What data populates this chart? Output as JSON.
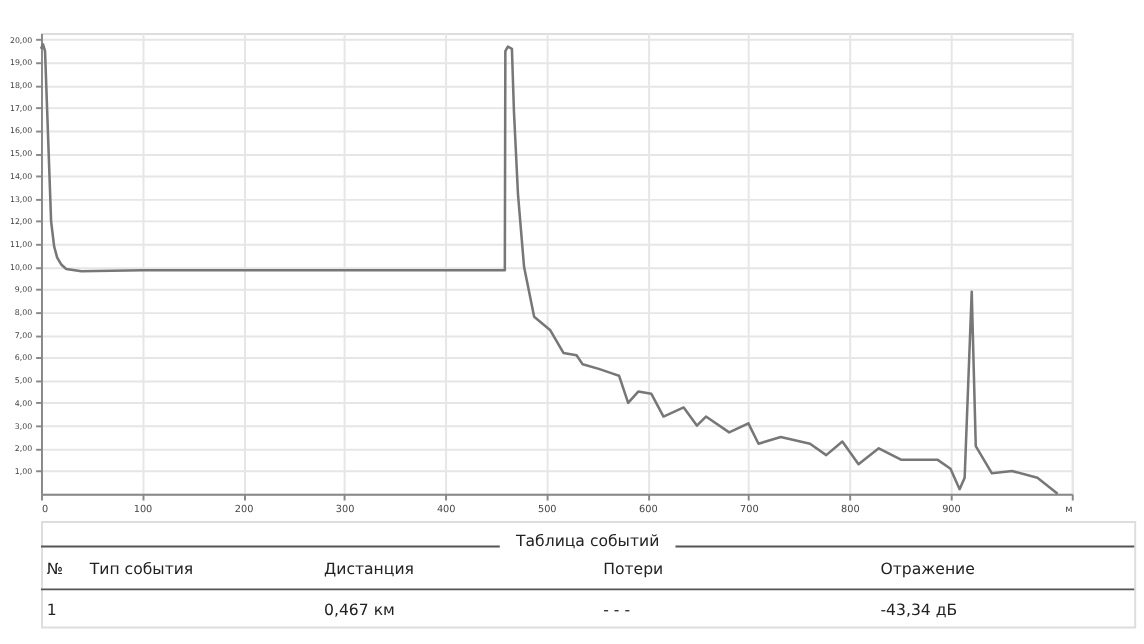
{
  "chart_data": {
    "type": "line",
    "x": [
      0,
      2,
      4,
      6,
      8,
      10,
      13,
      16,
      20,
      25,
      40,
      100,
      200,
      300,
      400,
      459,
      459.5,
      462,
      466,
      468,
      472,
      478,
      488,
      504,
      517,
      530,
      536,
      552,
      565,
      572,
      581,
      591,
      604,
      616,
      636,
      649,
      658,
      681,
      700,
      710,
      732,
      761,
      777,
      793,
      809,
      829,
      851,
      887,
      900,
      909,
      914,
      921,
      925,
      941,
      961,
      986,
      1006
    ],
    "series": [
      {
        "color": "#777777",
        "values": [
          19.6,
          19.8,
          19.5,
          17.0,
          14.5,
          12.0,
          10.9,
          10.4,
          10.1,
          9.9,
          9.8,
          9.85,
          9.85,
          9.85,
          9.85,
          9.85,
          19.5,
          19.7,
          19.6,
          16.85,
          13.2,
          10.0,
          7.8,
          7.2,
          6.2,
          6.1,
          5.7,
          5.5,
          5.3,
          5.2,
          4.0,
          4.5,
          4.4,
          3.4,
          3.8,
          3.0,
          3.4,
          2.7,
          3.1,
          2.2,
          2.5,
          2.2,
          1.7,
          2.3,
          1.3,
          2.0,
          1.5,
          1.5,
          1.1,
          0.2,
          0.7,
          8.9,
          2.1,
          0.9,
          1.0,
          0.7,
          0.0
        ]
      }
    ],
    "xlim": [
      0,
      1020
    ],
    "xticks": [
      0,
      100,
      200,
      300,
      400,
      500,
      600,
      700,
      800,
      900,
      {
        "value": 1020,
        "label": "м"
      }
    ],
    "ylim": [
      0,
      20.3
    ],
    "yticks": [
      {
        "value": 1,
        "label": "1,00"
      },
      {
        "value": 2,
        "label": "2,00"
      },
      {
        "value": 3,
        "label": "3,00"
      },
      {
        "value": 4,
        "label": "4,00"
      },
      {
        "value": 5,
        "label": "5,00"
      },
      {
        "value": 6,
        "label": "6,00"
      },
      {
        "value": 7,
        "label": "7,00"
      },
      {
        "value": 8,
        "label": "8,00"
      },
      {
        "value": 9,
        "label": "9,00"
      },
      {
        "value": 10,
        "label": "10,00"
      },
      {
        "value": 11,
        "label": "11,00"
      },
      {
        "value": 12,
        "label": "12,00"
      },
      {
        "value": 13,
        "label": "13,00"
      },
      {
        "value": 14,
        "label": "14,00"
      },
      {
        "value": 15,
        "label": "15,00"
      },
      {
        "value": 16,
        "label": "16,00"
      },
      {
        "value": 17,
        "label": "17,00"
      },
      {
        "value": 18,
        "label": "18,00"
      },
      {
        "value": 19,
        "label": "19,00"
      },
      {
        "value": 20,
        "label": "20,00"
      }
    ],
    "grid": true,
    "line_style": "solid",
    "marker": "none",
    "annotations": [
      "Таблица событий",
      "№",
      "Тип события",
      "Дистанция",
      "Потери",
      "Отражение",
      "1",
      "0,467 км",
      "- - -",
      "-43,34 дБ"
    ]
  }
}
